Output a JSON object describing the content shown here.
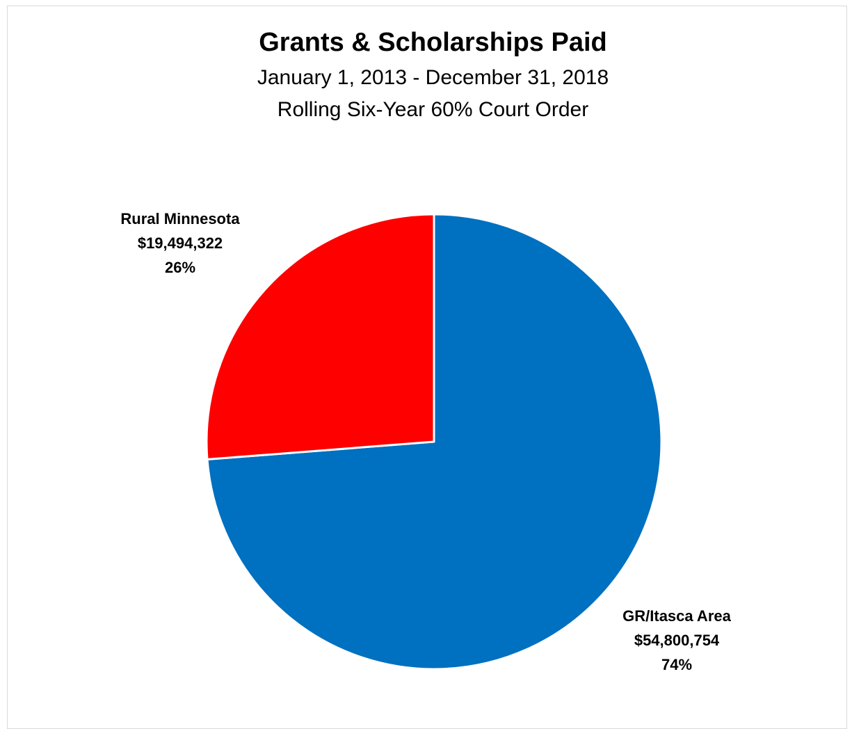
{
  "chart_data": {
    "type": "pie",
    "title": "Grants & Scholarships Paid",
    "subtitle": [
      "January 1, 2013 - December 31, 2018",
      "Rolling Six-Year 60% Court Order"
    ],
    "slices": [
      {
        "label": "GR/Itasca Area",
        "value": 54800754,
        "value_label": "$54,800,754",
        "percent_label": "74%",
        "color": "#0070c0"
      },
      {
        "label": "Rural Minnesota",
        "value": 19494322,
        "value_label": "$19,494,322",
        "percent_label": "26%",
        "color": "#ff0000"
      }
    ],
    "legend": "none"
  }
}
